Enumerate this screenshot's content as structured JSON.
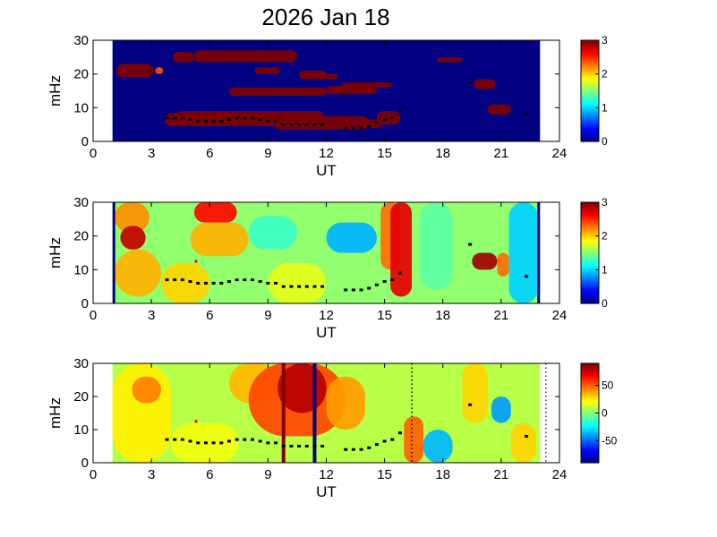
{
  "figure": {
    "title": "2026 Jan 18"
  },
  "chart_data": [
    {
      "type": "heatmap",
      "xlabel": "UT",
      "ylabel": "mHz",
      "xlim": [
        0,
        24
      ],
      "ylim": [
        0,
        30
      ],
      "xticks": [
        0,
        3,
        6,
        9,
        12,
        15,
        18,
        21,
        24
      ],
      "yticks": [
        0,
        10,
        20,
        30
      ],
      "data_xrange": [
        1,
        23
      ],
      "colorbar": {
        "range": [
          0,
          3
        ],
        "ticks": [
          0,
          1,
          2,
          3
        ]
      },
      "background_level": 0,
      "regions": [
        {
          "x": [
            3.7,
            9.5
          ],
          "y": [
            4.5,
            8.5
          ],
          "level": 3
        },
        {
          "x": [
            9.3,
            14.2
          ],
          "y": [
            3.5,
            7.5
          ],
          "level": 3
        },
        {
          "x": [
            4.2,
            7.8
          ],
          "y": [
            5.5,
            9.0
          ],
          "level": 3
        },
        {
          "x": [
            6.2,
            11.8
          ],
          "y": [
            7.0,
            9.0
          ],
          "level": 3
        },
        {
          "x": [
            4.1,
            5.2
          ],
          "y": [
            23.5,
            26.5
          ],
          "level": 3
        },
        {
          "x": [
            5.2,
            10.5
          ],
          "y": [
            23.5,
            27.0
          ],
          "level": 3
        },
        {
          "x": [
            7.0,
            12.0
          ],
          "y": [
            13.5,
            16.0
          ],
          "level": 3
        },
        {
          "x": [
            10.6,
            12.0
          ],
          "y": [
            18.5,
            21.0
          ],
          "level": 3
        },
        {
          "x": [
            8.3,
            9.6
          ],
          "y": [
            20.0,
            22.0
          ],
          "level": 3
        },
        {
          "x": [
            11.4,
            12.6
          ],
          "y": [
            18.5,
            20.0
          ],
          "level": 3
        },
        {
          "x": [
            12.0,
            14.6
          ],
          "y": [
            14.0,
            16.5
          ],
          "level": 3
        },
        {
          "x": [
            12.8,
            15.4
          ],
          "y": [
            16.0,
            17.5
          ],
          "level": 3
        },
        {
          "x": [
            14.6,
            15.8
          ],
          "y": [
            5.0,
            9.0
          ],
          "level": 3
        },
        {
          "x": [
            14.0,
            14.9
          ],
          "y": [
            4.0,
            6.5
          ],
          "level": 3
        },
        {
          "x": [
            1.2,
            3.1
          ],
          "y": [
            19.0,
            23.0
          ],
          "level": 3
        },
        {
          "x": [
            17.7,
            19.0
          ],
          "y": [
            23.5,
            25.0
          ],
          "level": 3
        },
        {
          "x": [
            19.6,
            20.7
          ],
          "y": [
            15.5,
            18.5
          ],
          "level": 3
        },
        {
          "x": [
            20.3,
            21.5
          ],
          "y": [
            8.0,
            11.0
          ],
          "level": 3
        },
        {
          "x": [
            3.2,
            3.6
          ],
          "y": [
            20.0,
            22.0
          ],
          "level": 2.4
        }
      ],
      "ridge_points": [
        [
          3.8,
          7
        ],
        [
          4.2,
          7
        ],
        [
          4.6,
          7
        ],
        [
          5.0,
          6.5
        ],
        [
          5.4,
          6
        ],
        [
          5.8,
          6
        ],
        [
          6.2,
          6
        ],
        [
          6.6,
          6
        ],
        [
          7.0,
          6.5
        ],
        [
          7.4,
          7
        ],
        [
          7.8,
          7
        ],
        [
          8.2,
          7
        ],
        [
          8.6,
          6.5
        ],
        [
          9.0,
          6
        ],
        [
          9.4,
          6
        ],
        [
          9.8,
          5
        ],
        [
          10.2,
          5
        ],
        [
          10.6,
          5
        ],
        [
          11.0,
          5
        ],
        [
          11.4,
          5
        ],
        [
          11.8,
          5
        ],
        [
          13.0,
          4
        ],
        [
          13.4,
          4
        ],
        [
          13.8,
          4
        ],
        [
          14.2,
          4.5
        ],
        [
          14.6,
          5.5
        ],
        [
          15.0,
          6.5
        ],
        [
          15.4,
          7
        ],
        [
          15.8,
          9
        ],
        [
          19.4,
          17.5
        ],
        [
          22.3,
          8
        ]
      ],
      "outlier_points": []
    },
    {
      "type": "heatmap",
      "xlabel": "UT",
      "ylabel": "mHz",
      "xlim": [
        0,
        24
      ],
      "ylim": [
        0,
        30
      ],
      "xticks": [
        0,
        3,
        6,
        9,
        12,
        15,
        18,
        21,
        24
      ],
      "yticks": [
        0,
        10,
        20,
        30
      ],
      "data_xrange": [
        1,
        23
      ],
      "colorbar": {
        "range": [
          0,
          3
        ],
        "ticks": [
          0,
          1,
          2,
          3
        ]
      },
      "background_level": 1.55,
      "edge_level": 0,
      "regions": [
        {
          "x": [
            1.1,
            2.9
          ],
          "y": [
            21.0,
            30.0
          ],
          "level": 2.2
        },
        {
          "x": [
            1.4,
            2.7
          ],
          "y": [
            16.0,
            23.0
          ],
          "level": 2.8
        },
        {
          "x": [
            1.1,
            3.5
          ],
          "y": [
            2.0,
            16.0
          ],
          "level": 2.1
        },
        {
          "x": [
            5.2,
            7.4
          ],
          "y": [
            24.0,
            30.0
          ],
          "level": 2.6
        },
        {
          "x": [
            5.0,
            8.0
          ],
          "y": [
            14.0,
            24.0
          ],
          "level": 2.1
        },
        {
          "x": [
            3.5,
            6.0
          ],
          "y": [
            0.0,
            12.0
          ],
          "level": 2.0
        },
        {
          "x": [
            8.0,
            10.5
          ],
          "y": [
            16.0,
            26.0
          ],
          "level": 1.3
        },
        {
          "x": [
            12.0,
            14.6
          ],
          "y": [
            15.0,
            24.0
          ],
          "level": 0.9
        },
        {
          "x": [
            14.8,
            15.8
          ],
          "y": [
            10.0,
            30.0
          ],
          "level": 2.3
        },
        {
          "x": [
            15.3,
            16.4
          ],
          "y": [
            2.0,
            30.0
          ],
          "level": 2.7
        },
        {
          "x": [
            16.8,
            18.5
          ],
          "y": [
            4.0,
            30.0
          ],
          "level": 1.4
        },
        {
          "x": [
            19.5,
            20.8
          ],
          "y": [
            10.0,
            15.0
          ],
          "level": 2.9
        },
        {
          "x": [
            20.8,
            21.4
          ],
          "y": [
            8.0,
            15.0
          ],
          "level": 2.3
        },
        {
          "x": [
            21.4,
            22.9
          ],
          "y": [
            0.0,
            30.0
          ],
          "level": 1.0
        },
        {
          "x": [
            9.0,
            12.0
          ],
          "y": [
            0.0,
            12.0
          ],
          "level": 1.8
        }
      ],
      "ridge_points": [
        [
          3.8,
          7
        ],
        [
          4.2,
          7
        ],
        [
          4.6,
          7
        ],
        [
          5.0,
          6.5
        ],
        [
          5.4,
          6
        ],
        [
          5.8,
          6
        ],
        [
          6.2,
          6
        ],
        [
          6.6,
          6
        ],
        [
          7.0,
          6.5
        ],
        [
          7.4,
          7
        ],
        [
          7.8,
          7
        ],
        [
          8.2,
          7
        ],
        [
          8.6,
          6.5
        ],
        [
          9.0,
          6
        ],
        [
          9.4,
          6
        ],
        [
          9.8,
          5
        ],
        [
          10.2,
          5
        ],
        [
          10.6,
          5
        ],
        [
          11.0,
          5
        ],
        [
          11.4,
          5
        ],
        [
          11.8,
          5
        ],
        [
          13.0,
          4
        ],
        [
          13.4,
          4
        ],
        [
          13.8,
          4
        ],
        [
          14.2,
          4.5
        ],
        [
          14.6,
          5.5
        ],
        [
          15.0,
          6.5
        ],
        [
          15.4,
          7
        ],
        [
          15.8,
          9
        ],
        [
          19.4,
          17.5
        ],
        [
          22.3,
          8
        ]
      ],
      "outlier_points": [
        [
          5.3,
          12.5
        ]
      ]
    },
    {
      "type": "heatmap",
      "xlabel": "UT",
      "ylabel": "mHz",
      "xlim": [
        0,
        24
      ],
      "ylim": [
        0,
        30
      ],
      "xticks": [
        0,
        3,
        6,
        9,
        12,
        15,
        18,
        21,
        24
      ],
      "yticks": [
        0,
        10,
        20,
        30
      ],
      "data_xrange": [
        1,
        23
      ],
      "colorbar": {
        "range": [
          -90,
          90
        ],
        "ticks": [
          50,
          0,
          -50
        ]
      },
      "background_level": 10,
      "regions": [
        {
          "x": [
            1.0,
            4.0
          ],
          "y": [
            0.0,
            30.0
          ],
          "level": 25
        },
        {
          "x": [
            2.0,
            3.5
          ],
          "y": [
            18.0,
            26.0
          ],
          "level": 45
        },
        {
          "x": [
            4.0,
            7.5
          ],
          "y": [
            0.0,
            12.0
          ],
          "level": 20
        },
        {
          "x": [
            7.0,
            9.5
          ],
          "y": [
            18.0,
            30.0
          ],
          "level": 35
        },
        {
          "x": [
            8.0,
            13.0
          ],
          "y": [
            8.0,
            30.0
          ],
          "level": 55
        },
        {
          "x": [
            9.5,
            12.0
          ],
          "y": [
            15.0,
            30.0
          ],
          "level": 80
        },
        {
          "x": [
            12.0,
            14.0
          ],
          "y": [
            10.0,
            26.0
          ],
          "level": 40
        },
        {
          "x": [
            16.0,
            17.0
          ],
          "y": [
            0.0,
            14.0
          ],
          "level": 50
        },
        {
          "x": [
            17.0,
            18.5
          ],
          "y": [
            0.0,
            10.0
          ],
          "level": -35
        },
        {
          "x": [
            19.0,
            20.3
          ],
          "y": [
            12.0,
            30.0
          ],
          "level": 30
        },
        {
          "x": [
            20.5,
            21.5
          ],
          "y": [
            12.0,
            20.0
          ],
          "level": -40
        },
        {
          "x": [
            21.5,
            22.8
          ],
          "y": [
            0.0,
            12.0
          ],
          "level": 30
        }
      ],
      "bands": [
        {
          "x": 9.8,
          "level": 90
        },
        {
          "x": 11.4,
          "level": -90
        }
      ],
      "dotted_lines": [
        {
          "x": 16.4,
          "color": "#000000"
        },
        {
          "x": 23.3,
          "color": "#c00000"
        }
      ],
      "ridge_points": [
        [
          3.8,
          7
        ],
        [
          4.2,
          7
        ],
        [
          4.6,
          7
        ],
        [
          5.0,
          6.5
        ],
        [
          5.4,
          6
        ],
        [
          5.8,
          6
        ],
        [
          6.2,
          6
        ],
        [
          6.6,
          6
        ],
        [
          7.0,
          6.5
        ],
        [
          7.4,
          7
        ],
        [
          7.8,
          7
        ],
        [
          8.2,
          7
        ],
        [
          8.6,
          6.5
        ],
        [
          9.0,
          6
        ],
        [
          9.4,
          6
        ],
        [
          9.8,
          5
        ],
        [
          10.2,
          5
        ],
        [
          10.6,
          5
        ],
        [
          11.0,
          5
        ],
        [
          11.4,
          5
        ],
        [
          11.8,
          5
        ],
        [
          13.0,
          4
        ],
        [
          13.4,
          4
        ],
        [
          13.8,
          4
        ],
        [
          14.2,
          4.5
        ],
        [
          14.6,
          5.5
        ],
        [
          15.0,
          6.5
        ],
        [
          15.4,
          7
        ],
        [
          15.8,
          9
        ],
        [
          19.4,
          17.5
        ],
        [
          22.3,
          8
        ]
      ],
      "outlier_points": [
        [
          5.3,
          12.5
        ]
      ]
    }
  ]
}
